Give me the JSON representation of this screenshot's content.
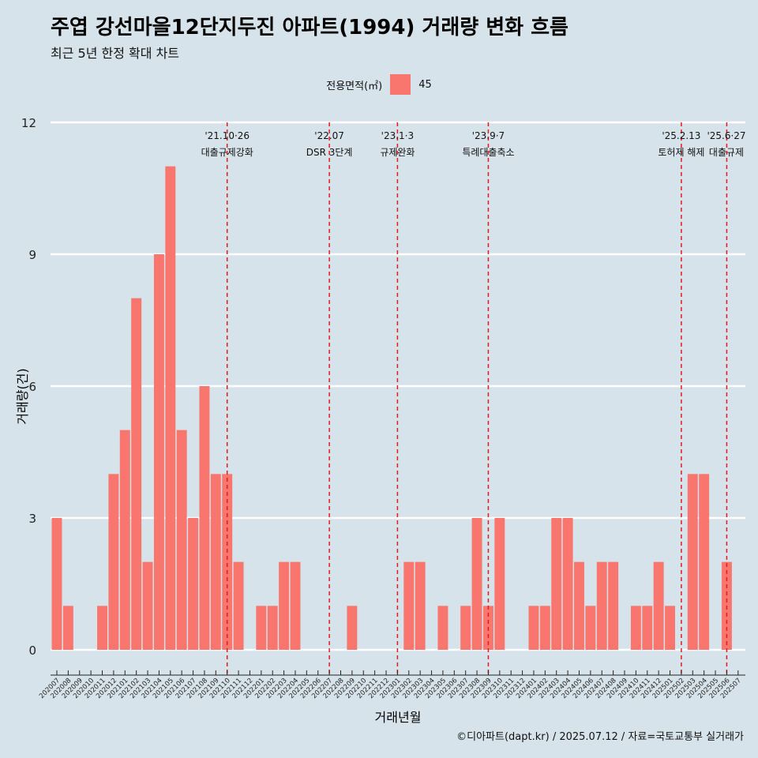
{
  "title": "주엽 강선마을12단지두진 아파트(1994) 거래량 변화 흐름",
  "subtitle": "최근 5년 한정 확대 차트",
  "caption": "©디아파트(dapt.kr) / 2025.07.12 / 자료=국토교통부 실거래가",
  "colors": {
    "background": "#d6e3ea",
    "bar": "#f8766d",
    "event_line": "#e41a1c",
    "grid": "#ffffff"
  },
  "legend": {
    "title": "전용면적(㎡)",
    "items": [
      {
        "label": "45",
        "color": "#f8766d"
      }
    ]
  },
  "chart_data": {
    "type": "bar",
    "title": "주엽 강선마을12단지두진 아파트(1994) 거래량 변화 흐름",
    "subtitle": "최근 5년 한정 확대 차트",
    "xlabel": "거래년월",
    "ylabel": "거래량(건)",
    "ylim": [
      0,
      12
    ],
    "yticks": [
      0,
      3,
      6,
      9,
      12
    ],
    "grid": true,
    "legend_position": "top",
    "categories": [
      "202007",
      "202008",
      "202009",
      "202010",
      "202011",
      "202012",
      "202101",
      "202102",
      "202103",
      "202104",
      "202105",
      "202106",
      "202107",
      "202108",
      "202109",
      "202110",
      "202111",
      "202112",
      "202201",
      "202202",
      "202203",
      "202204",
      "202205",
      "202206",
      "202207",
      "202208",
      "202209",
      "202210",
      "202211",
      "202212",
      "202301",
      "202302",
      "202303",
      "202304",
      "202305",
      "202306",
      "202307",
      "202308",
      "202309",
      "202310",
      "202311",
      "202312",
      "202401",
      "202402",
      "202403",
      "202404",
      "202405",
      "202406",
      "202407",
      "202408",
      "202409",
      "202410",
      "202411",
      "202412",
      "202501",
      "202502",
      "202503",
      "202504",
      "202505",
      "202506",
      "202507"
    ],
    "series": [
      {
        "name": "45",
        "values": [
          3,
          1,
          0,
          0,
          1,
          4,
          5,
          8,
          2,
          9,
          11,
          5,
          3,
          6,
          4,
          4,
          2,
          0,
          1,
          1,
          2,
          2,
          0,
          0,
          0,
          0,
          1,
          0,
          0,
          0,
          0,
          2,
          2,
          0,
          1,
          0,
          1,
          3,
          1,
          3,
          0,
          0,
          1,
          1,
          3,
          3,
          2,
          1,
          2,
          2,
          0,
          1,
          1,
          2,
          1,
          0,
          4,
          4,
          0,
          2,
          0
        ]
      }
    ],
    "events": [
      {
        "category": "202110",
        "date": "'21.10·26",
        "label": "대출규제강화"
      },
      {
        "category": "202207",
        "date": "'22.07",
        "label": "DSR 3단계"
      },
      {
        "category": "202301",
        "date": "'23.1·3",
        "label": "규제완화"
      },
      {
        "category": "202309",
        "date": "'23.9·7",
        "label": "특례대출축소"
      },
      {
        "category": "202502",
        "date": "'25.2.13",
        "label": "토허제 해제"
      },
      {
        "category": "202506",
        "date": "'25.6·27",
        "label": "대출규제"
      }
    ]
  }
}
